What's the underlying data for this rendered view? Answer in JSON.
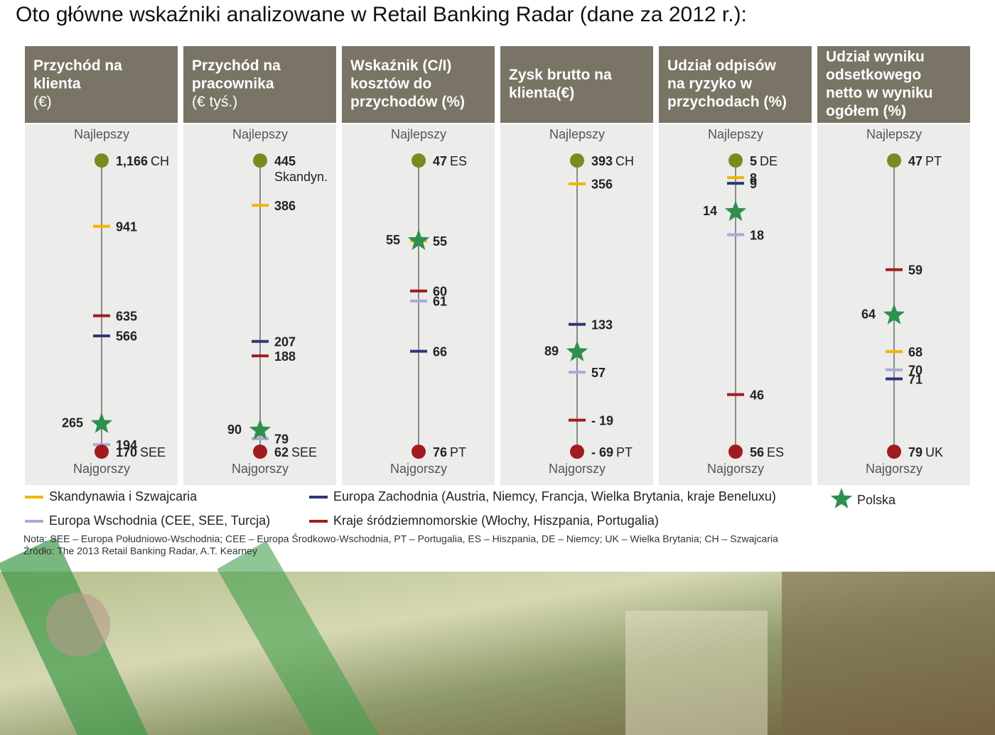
{
  "title": "Oto główne wskaźniki analizowane w Retail Banking Radar (dane za 2012 r.):",
  "best_label": "Najlepszy",
  "worst_label": "Najgorszy",
  "legend": [
    {
      "name": "Skandynawia i Szwajcaria",
      "color": "#f2b600",
      "marker": "dash"
    },
    {
      "name": "Europa Zachodnia (Austria, Niemcy, Francja, Wielka Brytania, kraje Beneluxu)",
      "color": "#2b3878",
      "marker": "dash"
    },
    {
      "name": "Europa Wschodnia (CEE, SEE, Turcja)",
      "color": "#a9a9dc",
      "marker": "dash"
    },
    {
      "name": "Kraje śródziemnomorskie (Włochy, Hiszpania, Portugalia)",
      "color": "#a11c1f",
      "marker": "dash"
    },
    {
      "name": "Polska",
      "color": "#2f8f4e",
      "marker": "star"
    }
  ],
  "best_color": "#7b8a1e",
  "worst_color": "#a11c1f",
  "chart_data": [
    {
      "type": "range",
      "title": [
        "Przychód na",
        "klienta",
        "(€)"
      ],
      "best": {
        "value": 1166,
        "label": "1,166",
        "code": "CH"
      },
      "worst": {
        "value": 170,
        "code": "SEE"
      },
      "values": [
        941,
        566,
        194,
        635,
        265
      ]
    },
    {
      "type": "range",
      "title": [
        "Przychód na",
        "pracownika",
        "(€ tyś.)"
      ],
      "best": {
        "value": 445,
        "code": "Skandyn."
      },
      "worst": {
        "value": 62,
        "code": "SEE"
      },
      "values": [
        386,
        207,
        79,
        188,
        90
      ]
    },
    {
      "type": "range",
      "title": [
        "Wskaźnik (C/I)",
        "kosztów do",
        "przychodów (%)"
      ],
      "best": {
        "value": 47,
        "code": "ES"
      },
      "worst": {
        "value": 76,
        "code": "PT"
      },
      "values": [
        55,
        66,
        61,
        60,
        55
      ]
    },
    {
      "type": "range",
      "title": [
        "Zysk brutto na",
        "klienta(€)"
      ],
      "best": {
        "value": 393,
        "code": "CH"
      },
      "worst": {
        "value": -69,
        "label": "- 69",
        "code": "PT"
      },
      "values": [
        356,
        133,
        57,
        -19,
        89
      ],
      "value_labels": [
        "356",
        "133",
        "57",
        "- 19",
        "89"
      ]
    },
    {
      "type": "range",
      "title": [
        "Udział odpisów",
        "na ryzyko w",
        "przychodach (%)"
      ],
      "best": {
        "value": 5,
        "code": "DE"
      },
      "worst": {
        "value": 56,
        "code": "ES"
      },
      "values": [
        8,
        9,
        18,
        46,
        14
      ]
    },
    {
      "type": "range",
      "title": [
        "Udział wyniku",
        "odsetkowego",
        "netto w wyniku",
        "ogółem (%)"
      ],
      "best": {
        "value": 47,
        "code": "PT"
      },
      "worst": {
        "value": 79,
        "code": "UK"
      },
      "values": [
        68,
        71,
        70,
        59,
        64
      ]
    }
  ],
  "note": "Nota: SEE – Europa Południowo-Wschodnia; CEE – Europa Środkowo-Wschodnia, PT – Portugalia, ES – Hiszpania, DE – Niemcy; UK – Wielka Brytania; CH – Szwajcaria",
  "source": "Źródło: The 2013 Retail Banking Radar, A.T. Kearney"
}
